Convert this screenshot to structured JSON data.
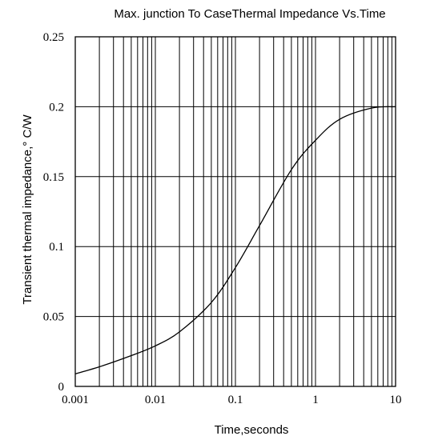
{
  "chart_data": {
    "type": "line",
    "title": "Max. junction To CaseThermal  Impedance  Vs.Time",
    "xlabel": "Time,seconds",
    "ylabel": "Transient thermal impedance,° C/W",
    "x_scale": "log",
    "xlim": [
      0.001,
      10
    ],
    "ylim": [
      0,
      0.25
    ],
    "x_ticks": [
      0.001,
      0.01,
      0.1,
      1,
      10
    ],
    "x_tick_labels": [
      "0.001",
      "0.01",
      "0.1",
      "1",
      "10"
    ],
    "y_ticks": [
      0,
      0.05,
      0.1,
      0.15,
      0.2,
      0.25
    ],
    "y_tick_labels": [
      "0",
      "0.05",
      "0.1",
      "0.15",
      "0.2",
      "0.25"
    ],
    "grid": true,
    "series": [
      {
        "x": [
          0.001,
          0.002,
          0.005,
          0.01,
          0.02,
          0.05,
          0.1,
          0.2,
          0.5,
          1,
          2,
          5,
          10
        ],
        "y": [
          0.009,
          0.014,
          0.022,
          0.029,
          0.039,
          0.06,
          0.085,
          0.115,
          0.155,
          0.176,
          0.191,
          0.199,
          0.2
        ]
      }
    ]
  }
}
